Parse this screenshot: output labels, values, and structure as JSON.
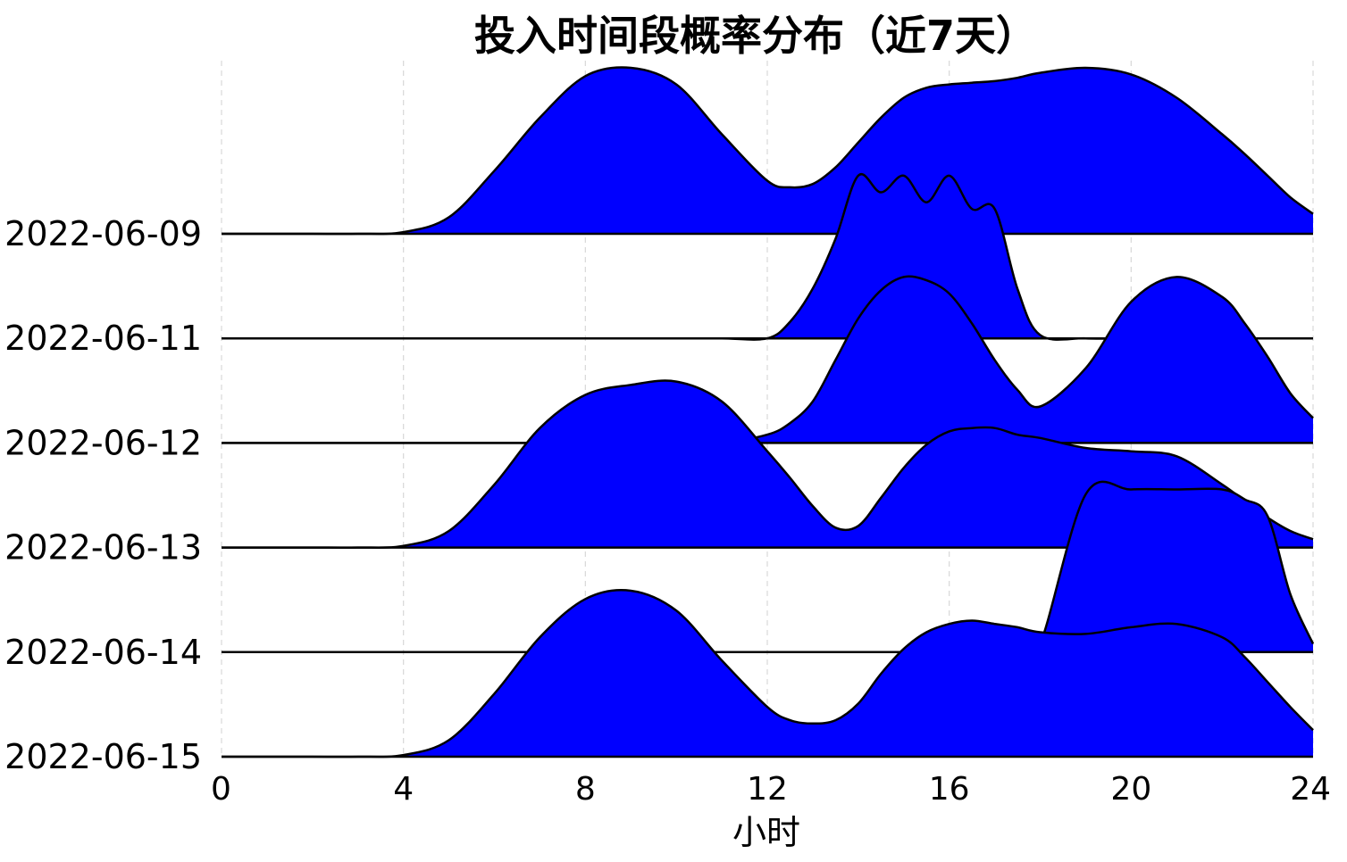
{
  "chart_data": {
    "type": "ridgeline",
    "title": "投入时间段概率分布（近7天）",
    "xlabel": "小时",
    "ylabel": "",
    "xlim": [
      0,
      24
    ],
    "xticks": [
      0,
      4,
      8,
      12,
      16,
      20,
      24
    ],
    "grid": "vertical-dashed",
    "fill_color": "#0000ff",
    "line_color": "#000000",
    "categories": [
      "2022-06-09",
      "2022-06-11",
      "2022-06-12",
      "2022-06-13",
      "2022-06-14",
      "2022-06-15"
    ],
    "x": [
      0,
      1,
      2,
      3,
      4,
      5,
      6,
      7,
      8,
      9,
      10,
      11,
      12,
      12.5,
      13,
      13.5,
      14,
      14.5,
      15,
      15.5,
      16,
      16.5,
      17,
      17.5,
      18,
      19,
      20,
      21,
      22,
      22.5,
      23,
      23.5,
      24
    ],
    "series": [
      {
        "label": "2022-06-09",
        "values": [
          0.0,
          0.0,
          0.0,
          0.0,
          0.01,
          0.1,
          0.38,
          0.7,
          0.95,
          1.0,
          0.9,
          0.6,
          0.32,
          0.28,
          0.3,
          0.4,
          0.55,
          0.7,
          0.82,
          0.88,
          0.9,
          0.91,
          0.92,
          0.94,
          0.97,
          1.0,
          0.96,
          0.82,
          0.6,
          0.48,
          0.35,
          0.22,
          0.12
        ]
      },
      {
        "label": "2022-06-11",
        "values": [
          0.0,
          0.0,
          0.0,
          0.0,
          0.0,
          0.0,
          0.0,
          0.0,
          0.0,
          0.0,
          0.0,
          0.0,
          0.0,
          0.1,
          0.3,
          0.6,
          0.98,
          0.88,
          0.98,
          0.82,
          0.98,
          0.78,
          0.78,
          0.3,
          0.02,
          0.0,
          0.0,
          0.0,
          0.0,
          0.0,
          0.0,
          0.0,
          0.0
        ]
      },
      {
        "label": "2022-06-12",
        "values": [
          0.0,
          0.0,
          0.0,
          0.0,
          0.0,
          0.0,
          0.0,
          0.0,
          0.0,
          0.0,
          0.0,
          0.0,
          0.05,
          0.12,
          0.25,
          0.5,
          0.75,
          0.92,
          1.0,
          0.98,
          0.9,
          0.72,
          0.5,
          0.32,
          0.22,
          0.45,
          0.85,
          1.0,
          0.88,
          0.72,
          0.52,
          0.3,
          0.15
        ]
      },
      {
        "label": "2022-06-13",
        "values": [
          0.0,
          0.0,
          0.0,
          0.0,
          0.01,
          0.1,
          0.38,
          0.72,
          0.92,
          0.98,
          1.0,
          0.88,
          0.58,
          0.42,
          0.25,
          0.12,
          0.13,
          0.3,
          0.48,
          0.62,
          0.7,
          0.72,
          0.72,
          0.68,
          0.66,
          0.6,
          0.58,
          0.55,
          0.38,
          0.28,
          0.18,
          0.1,
          0.05
        ]
      },
      {
        "label": "2022-06-14",
        "values": [
          0.0,
          0.0,
          0.0,
          0.0,
          0.0,
          0.0,
          0.0,
          0.0,
          0.0,
          0.0,
          0.0,
          0.0,
          0.0,
          0.0,
          0.0,
          0.0,
          0.0,
          0.0,
          0.0,
          0.0,
          0.0,
          0.0,
          0.0,
          0.0,
          0.05,
          0.95,
          0.98,
          0.98,
          0.98,
          0.92,
          0.82,
          0.35,
          0.05
        ]
      },
      {
        "label": "2022-06-15",
        "values": [
          0.0,
          0.0,
          0.0,
          0.0,
          0.01,
          0.1,
          0.38,
          0.72,
          0.95,
          1.0,
          0.88,
          0.58,
          0.3,
          0.22,
          0.2,
          0.22,
          0.32,
          0.5,
          0.65,
          0.75,
          0.8,
          0.82,
          0.8,
          0.78,
          0.75,
          0.74,
          0.78,
          0.8,
          0.72,
          0.6,
          0.45,
          0.3,
          0.16
        ]
      }
    ]
  }
}
